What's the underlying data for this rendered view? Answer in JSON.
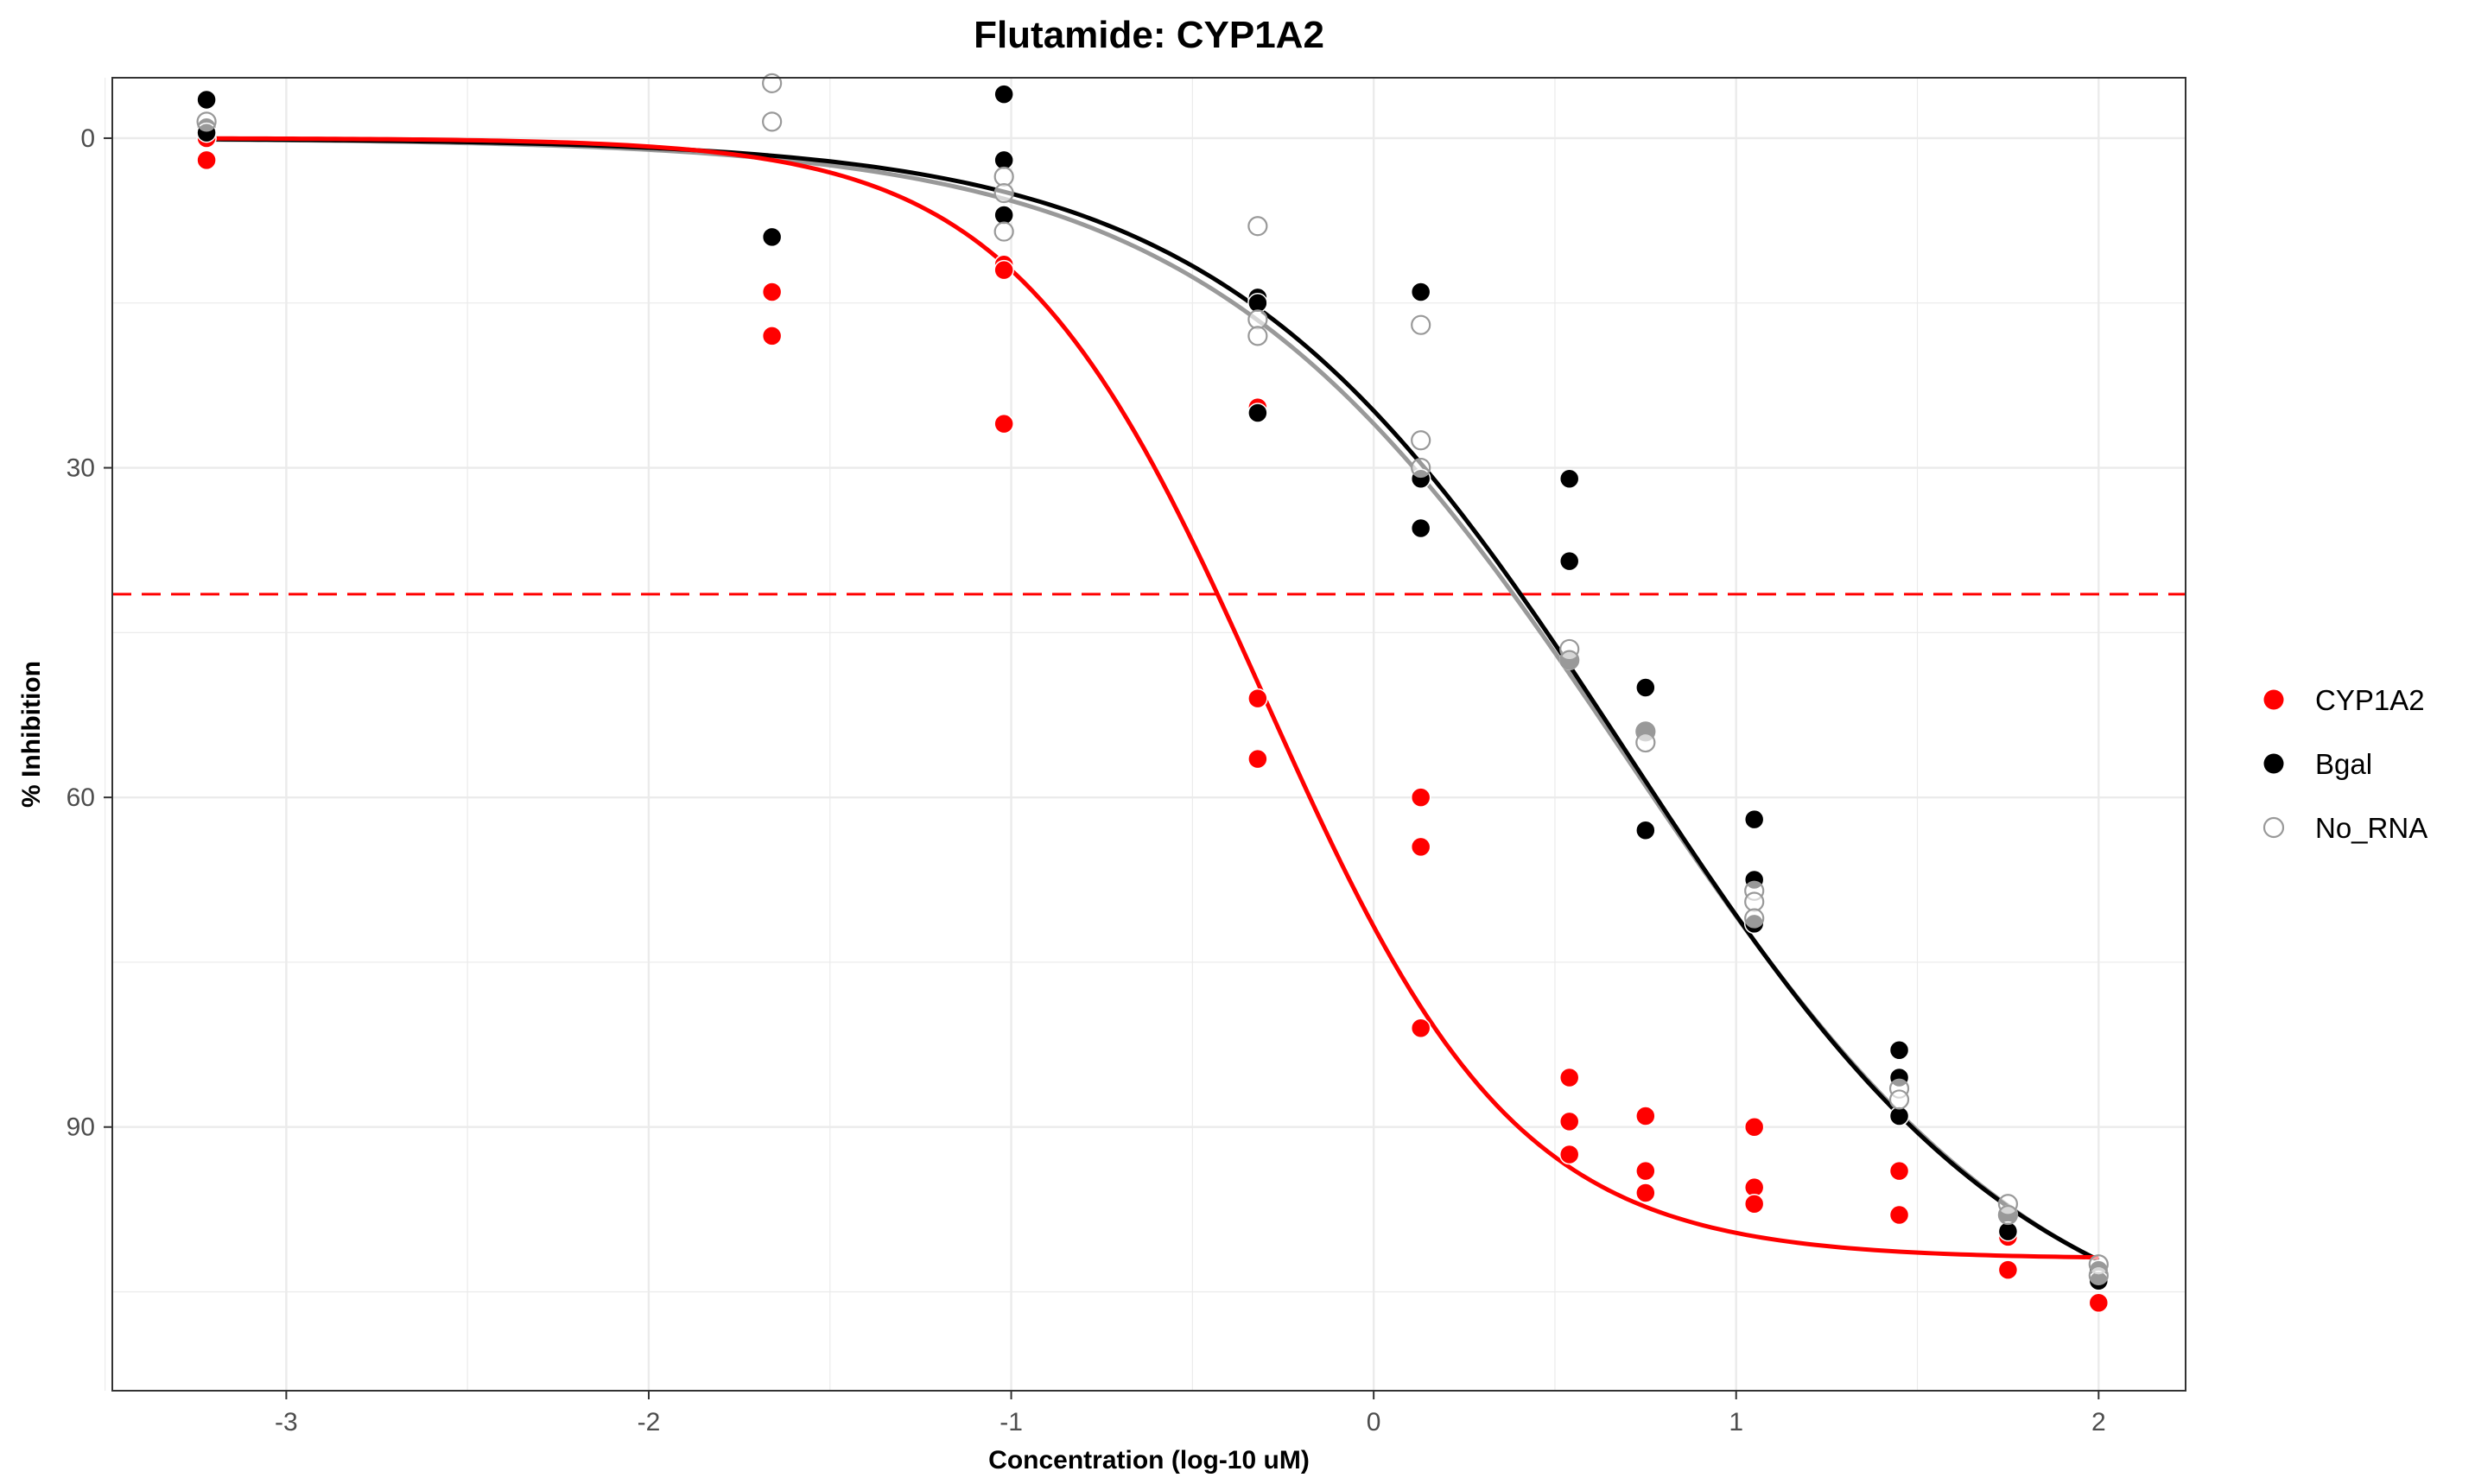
{
  "chart_data": {
    "type": "scatter",
    "title": "Flutamide: CYP1A2",
    "xlabel": "Concentration (log-10 uM)",
    "ylabel": "% Inhibition",
    "xlim": [
      -3.48,
      2.24
    ],
    "ylim": [
      -5.5,
      114
    ],
    "y_reversed": true,
    "x_ticks": [
      -3,
      -2,
      -1,
      0,
      1,
      2
    ],
    "y_ticks": [
      0,
      30,
      60,
      90
    ],
    "grid": true,
    "legend_position": "right",
    "reference_line": {
      "y": 41.5,
      "color": "#ff0000",
      "style": "dashed"
    },
    "series": [
      {
        "name": "CYP1A2",
        "color": "#ff0000",
        "marker": "filled-circle",
        "points": [
          [
            -3.22,
            0
          ],
          [
            -3.22,
            2
          ],
          [
            -1.66,
            14
          ],
          [
            -1.66,
            18
          ],
          [
            -1.02,
            11.5
          ],
          [
            -1.02,
            12
          ],
          [
            -1.02,
            26
          ],
          [
            -0.32,
            24.5
          ],
          [
            -0.32,
            51
          ],
          [
            -0.32,
            56.5
          ],
          [
            0.13,
            60
          ],
          [
            0.13,
            64.5
          ],
          [
            0.13,
            81
          ],
          [
            0.54,
            85.5
          ],
          [
            0.54,
            89.5
          ],
          [
            0.54,
            92.5
          ],
          [
            0.75,
            89
          ],
          [
            0.75,
            94
          ],
          [
            0.75,
            96
          ],
          [
            1.05,
            90
          ],
          [
            1.05,
            95.5
          ],
          [
            1.05,
            97
          ],
          [
            1.45,
            94
          ],
          [
            1.45,
            98
          ],
          [
            1.75,
            100
          ],
          [
            1.75,
            103
          ],
          [
            2.0,
            106
          ]
        ],
        "curve": {
          "top": 0,
          "bottom": 102,
          "ec50_log": -0.3,
          "hill": 1.25
        }
      },
      {
        "name": "Bgal",
        "color": "#000000",
        "marker": "filled-circle",
        "points": [
          [
            -3.22,
            -3.5
          ],
          [
            -3.22,
            -1
          ],
          [
            -3.22,
            -0.5
          ],
          [
            -1.66,
            9
          ],
          [
            -1.02,
            -4
          ],
          [
            -1.02,
            2
          ],
          [
            -1.02,
            7
          ],
          [
            -0.32,
            14.5
          ],
          [
            -0.32,
            15
          ],
          [
            -0.32,
            25
          ],
          [
            0.13,
            14
          ],
          [
            0.13,
            31
          ],
          [
            0.13,
            35.5
          ],
          [
            0.54,
            31
          ],
          [
            0.54,
            38.5
          ],
          [
            0.54,
            47.5
          ],
          [
            0.75,
            50
          ],
          [
            0.75,
            54
          ],
          [
            0.75,
            63
          ],
          [
            1.05,
            62
          ],
          [
            1.05,
            67.5
          ],
          [
            1.05,
            71.5
          ],
          [
            1.45,
            83
          ],
          [
            1.45,
            85.5
          ],
          [
            1.45,
            89
          ],
          [
            1.75,
            98
          ],
          [
            1.75,
            99.5
          ],
          [
            2.0,
            103
          ],
          [
            2.0,
            104
          ]
        ],
        "curve": {
          "top": 0,
          "bottom": 112,
          "ec50_log": 0.7,
          "hill": 0.78
        }
      },
      {
        "name": "No_RNA",
        "color": "#999999",
        "marker": "open-circle",
        "points": [
          [
            -3.22,
            -1.5
          ],
          [
            -1.66,
            -5
          ],
          [
            -1.66,
            -1.5
          ],
          [
            -1.02,
            3.5
          ],
          [
            -1.02,
            5
          ],
          [
            -1.02,
            8.5
          ],
          [
            -0.32,
            8
          ],
          [
            -0.32,
            16.5
          ],
          [
            -0.32,
            18
          ],
          [
            0.13,
            17
          ],
          [
            0.13,
            27.5
          ],
          [
            0.13,
            30
          ],
          [
            0.54,
            46.5
          ],
          [
            0.54,
            47.5
          ],
          [
            0.75,
            54
          ],
          [
            0.75,
            55
          ],
          [
            1.05,
            68.5
          ],
          [
            1.05,
            69.5
          ],
          [
            1.05,
            71
          ],
          [
            1.45,
            86.5
          ],
          [
            1.45,
            87.5
          ],
          [
            1.75,
            97
          ],
          [
            1.75,
            98
          ],
          [
            2.0,
            102.5
          ],
          [
            2.0,
            103.5
          ]
        ],
        "curve": {
          "top": 0,
          "bottom": 113,
          "ec50_log": 0.7,
          "hill": 0.75
        }
      }
    ]
  }
}
